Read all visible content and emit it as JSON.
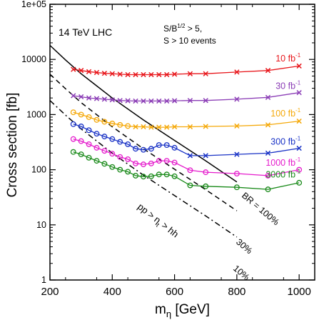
{
  "chart_data": {
    "type": "line",
    "y_scale": "log",
    "xlim": [
      200,
      1050
    ],
    "ylim": [
      1,
      100000
    ],
    "x_ticks": [
      "200",
      "400",
      "600",
      "800",
      "1000"
    ],
    "y_ticks": [
      "1",
      "10",
      "100",
      "1000",
      "10000",
      "1e+05"
    ],
    "xlabel_main": "m",
    "xlabel_sub": "η",
    "xlabel_unit": " [GeV]",
    "ylabel": "Cross section [fb]",
    "text_lhc": "14 TeV LHC",
    "cond_line1_pre": "S/B",
    "cond_line1_sup": "1/2",
    "cond_line1_post": " > 5,",
    "cond_line2": "S > 10 events",
    "series": [
      {
        "name_num": "10 fb",
        "name_sup": "-1",
        "color": "#e8161b",
        "points": [
          {
            "x": 275,
            "y": 6600,
            "m": "x"
          },
          {
            "x": 300,
            "y": 6300,
            "m": "x"
          },
          {
            "x": 325,
            "y": 6000,
            "m": "x"
          },
          {
            "x": 350,
            "y": 5800,
            "m": "x"
          },
          {
            "x": 375,
            "y": 5600,
            "m": "x"
          },
          {
            "x": 400,
            "y": 5500,
            "m": "x"
          },
          {
            "x": 425,
            "y": 5400,
            "m": "x"
          },
          {
            "x": 450,
            "y": 5300,
            "m": "x"
          },
          {
            "x": 475,
            "y": 5300,
            "m": "x"
          },
          {
            "x": 500,
            "y": 5300,
            "m": "x"
          },
          {
            "x": 525,
            "y": 5300,
            "m": "x"
          },
          {
            "x": 550,
            "y": 5300,
            "m": "x"
          },
          {
            "x": 575,
            "y": 5300,
            "m": "x"
          },
          {
            "x": 600,
            "y": 5400,
            "m": "x"
          },
          {
            "x": 650,
            "y": 5500,
            "m": "x"
          },
          {
            "x": 700,
            "y": 5500,
            "m": "x"
          },
          {
            "x": 800,
            "y": 5900,
            "m": "x"
          },
          {
            "x": 900,
            "y": 6300,
            "m": "x"
          },
          {
            "x": 1000,
            "y": 7600,
            "m": "x"
          }
        ]
      },
      {
        "name_num": "30 fb",
        "name_sup": "-1",
        "color": "#8b3db6",
        "points": [
          {
            "x": 275,
            "y": 2200,
            "m": "x"
          },
          {
            "x": 300,
            "y": 2100,
            "m": "x"
          },
          {
            "x": 325,
            "y": 2000,
            "m": "x"
          },
          {
            "x": 350,
            "y": 1950,
            "m": "x"
          },
          {
            "x": 375,
            "y": 1900,
            "m": "x"
          },
          {
            "x": 400,
            "y": 1850,
            "m": "x"
          },
          {
            "x": 425,
            "y": 1800,
            "m": "x"
          },
          {
            "x": 450,
            "y": 1780,
            "m": "x"
          },
          {
            "x": 475,
            "y": 1760,
            "m": "x"
          },
          {
            "x": 500,
            "y": 1760,
            "m": "x"
          },
          {
            "x": 525,
            "y": 1760,
            "m": "x"
          },
          {
            "x": 550,
            "y": 1760,
            "m": "x"
          },
          {
            "x": 575,
            "y": 1760,
            "m": "x"
          },
          {
            "x": 600,
            "y": 1780,
            "m": "x"
          },
          {
            "x": 650,
            "y": 1800,
            "m": "x"
          },
          {
            "x": 700,
            "y": 1800,
            "m": "x"
          },
          {
            "x": 800,
            "y": 1900,
            "m": "x"
          },
          {
            "x": 900,
            "y": 2050,
            "m": "x"
          },
          {
            "x": 1000,
            "y": 2500,
            "m": "x"
          }
        ]
      },
      {
        "name_num": "100 fb",
        "name_sup": "-1",
        "color": "#f5a90a",
        "points": [
          {
            "x": 275,
            "y": 1100,
            "m": "o"
          },
          {
            "x": 300,
            "y": 1000,
            "m": "o"
          },
          {
            "x": 325,
            "y": 900,
            "m": "o"
          },
          {
            "x": 350,
            "y": 800,
            "m": "o"
          },
          {
            "x": 375,
            "y": 740,
            "m": "o"
          },
          {
            "x": 400,
            "y": 690,
            "m": "o"
          },
          {
            "x": 425,
            "y": 650,
            "m": "o"
          },
          {
            "x": 450,
            "y": 620,
            "m": "o"
          },
          {
            "x": 475,
            "y": 600,
            "m": "x"
          },
          {
            "x": 500,
            "y": 600,
            "m": "x"
          },
          {
            "x": 525,
            "y": 590,
            "m": "x"
          },
          {
            "x": 550,
            "y": 590,
            "m": "x"
          },
          {
            "x": 575,
            "y": 590,
            "m": "x"
          },
          {
            "x": 600,
            "y": 600,
            "m": "x"
          },
          {
            "x": 650,
            "y": 600,
            "m": "x"
          },
          {
            "x": 700,
            "y": 610,
            "m": "x"
          },
          {
            "x": 800,
            "y": 620,
            "m": "x"
          },
          {
            "x": 900,
            "y": 650,
            "m": "x"
          },
          {
            "x": 1000,
            "y": 760,
            "m": "x"
          }
        ]
      },
      {
        "name_num": "300 fb",
        "name_sup": "-1",
        "color": "#1a33c6",
        "points": [
          {
            "x": 275,
            "y": 670,
            "m": "o"
          },
          {
            "x": 300,
            "y": 610,
            "m": "o"
          },
          {
            "x": 325,
            "y": 520,
            "m": "o"
          },
          {
            "x": 350,
            "y": 450,
            "m": "o"
          },
          {
            "x": 375,
            "y": 400,
            "m": "o"
          },
          {
            "x": 400,
            "y": 360,
            "m": "o"
          },
          {
            "x": 425,
            "y": 320,
            "m": "o"
          },
          {
            "x": 450,
            "y": 290,
            "m": "o"
          },
          {
            "x": 475,
            "y": 240,
            "m": "o"
          },
          {
            "x": 500,
            "y": 230,
            "m": "o"
          },
          {
            "x": 525,
            "y": 240,
            "m": "o"
          },
          {
            "x": 550,
            "y": 280,
            "m": "o"
          },
          {
            "x": 575,
            "y": 280,
            "m": "o"
          },
          {
            "x": 600,
            "y": 250,
            "m": "o"
          },
          {
            "x": 650,
            "y": 180,
            "m": "x"
          },
          {
            "x": 700,
            "y": 180,
            "m": "x"
          },
          {
            "x": 800,
            "y": 190,
            "m": "x"
          },
          {
            "x": 900,
            "y": 200,
            "m": "x"
          },
          {
            "x": 1000,
            "y": 245,
            "m": "x"
          }
        ]
      },
      {
        "name_num": "1000 fb",
        "name_sup": "-1",
        "color": "#e51ccc",
        "points": [
          {
            "x": 275,
            "y": 360,
            "m": "o"
          },
          {
            "x": 300,
            "y": 330,
            "m": "o"
          },
          {
            "x": 325,
            "y": 290,
            "m": "o"
          },
          {
            "x": 350,
            "y": 250,
            "m": "o"
          },
          {
            "x": 375,
            "y": 220,
            "m": "o"
          },
          {
            "x": 400,
            "y": 195,
            "m": "o"
          },
          {
            "x": 425,
            "y": 170,
            "m": "o"
          },
          {
            "x": 450,
            "y": 155,
            "m": "o"
          },
          {
            "x": 475,
            "y": 130,
            "m": "o"
          },
          {
            "x": 500,
            "y": 125,
            "m": "o"
          },
          {
            "x": 525,
            "y": 130,
            "m": "o"
          },
          {
            "x": 550,
            "y": 145,
            "m": "o"
          },
          {
            "x": 575,
            "y": 145,
            "m": "o"
          },
          {
            "x": 600,
            "y": 135,
            "m": "o"
          },
          {
            "x": 650,
            "y": 98,
            "m": "o"
          },
          {
            "x": 700,
            "y": 90,
            "m": "o"
          },
          {
            "x": 800,
            "y": 85,
            "m": "o"
          },
          {
            "x": 900,
            "y": 78,
            "m": "o"
          },
          {
            "x": 1000,
            "y": 100,
            "m": "o"
          }
        ]
      },
      {
        "name_num": "3000 fb",
        "name_sup": "-1",
        "color": "#1a8a1a",
        "points": [
          {
            "x": 275,
            "y": 210,
            "m": "o"
          },
          {
            "x": 300,
            "y": 190,
            "m": "o"
          },
          {
            "x": 325,
            "y": 165,
            "m": "o"
          },
          {
            "x": 350,
            "y": 145,
            "m": "o"
          },
          {
            "x": 375,
            "y": 128,
            "m": "o"
          },
          {
            "x": 400,
            "y": 112,
            "m": "o"
          },
          {
            "x": 425,
            "y": 100,
            "m": "o"
          },
          {
            "x": 450,
            "y": 92,
            "m": "o"
          },
          {
            "x": 475,
            "y": 78,
            "m": "o"
          },
          {
            "x": 500,
            "y": 75,
            "m": "o"
          },
          {
            "x": 525,
            "y": 76,
            "m": "o"
          },
          {
            "x": 550,
            "y": 82,
            "m": "o"
          },
          {
            "x": 575,
            "y": 82,
            "m": "o"
          },
          {
            "x": 600,
            "y": 76,
            "m": "o"
          },
          {
            "x": 650,
            "y": 52,
            "m": "o"
          },
          {
            "x": 700,
            "y": 50,
            "m": "o"
          },
          {
            "x": 800,
            "y": 48,
            "m": "o"
          },
          {
            "x": 900,
            "y": 44,
            "m": "o"
          },
          {
            "x": 1000,
            "y": 58,
            "m": "o"
          }
        ]
      }
    ],
    "reference_curves": [
      {
        "label": "BR = 100%",
        "style": "solid",
        "points": [
          [
            200,
            18000
          ],
          [
            250,
            9800
          ],
          [
            300,
            5500
          ],
          [
            400,
            2000
          ],
          [
            500,
            800
          ],
          [
            600,
            340
          ],
          [
            700,
            145
          ],
          [
            800,
            60
          ]
        ]
      },
      {
        "label": "30%",
        "style": "dashed",
        "points": [
          [
            200,
            5400
          ],
          [
            250,
            2940
          ],
          [
            300,
            1650
          ],
          [
            400,
            600
          ],
          [
            500,
            240
          ],
          [
            600,
            102
          ],
          [
            700,
            43.5
          ],
          [
            800,
            18
          ]
        ]
      },
      {
        "label": "10%",
        "style": "dashdot",
        "points": [
          [
            200,
            1800
          ],
          [
            250,
            980
          ],
          [
            300,
            550
          ],
          [
            400,
            200
          ],
          [
            500,
            80
          ],
          [
            600,
            34
          ],
          [
            700,
            14.5
          ],
          [
            800,
            6
          ]
        ]
      }
    ],
    "process_main": "pp > η",
    "process_sub": "t",
    "process_post": " > hh"
  }
}
